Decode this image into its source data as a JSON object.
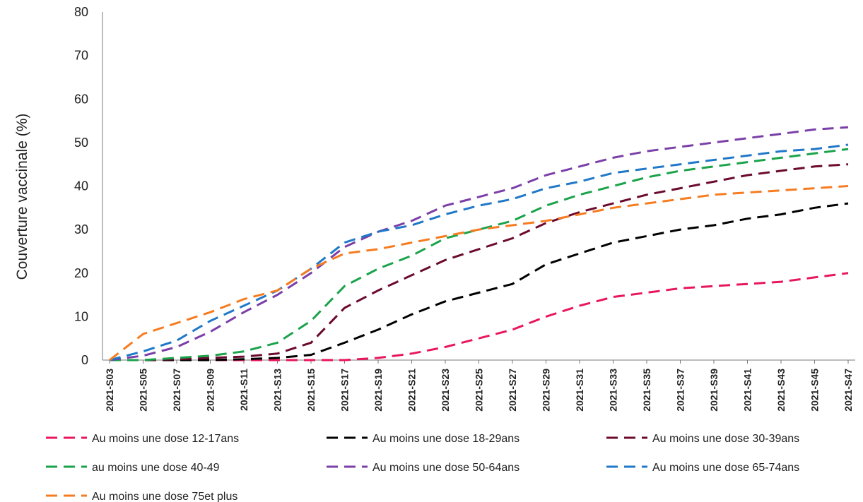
{
  "chart_data": {
    "type": "line",
    "ylabel": "Couverture vaccinale (%)",
    "xlabel": "",
    "ylim": [
      0,
      80
    ],
    "yticks": [
      "0",
      "10",
      "20",
      "30",
      "40",
      "50",
      "60",
      "70",
      "80"
    ],
    "x": [
      "2021-S03",
      "2021-S05",
      "2021-S07",
      "2021-S09",
      "2021-S11",
      "2021-S13",
      "2021-S15",
      "2021-S17",
      "2021-S19",
      "2021-S21",
      "2021-S23",
      "2021-S25",
      "2021-S27",
      "2021-S29",
      "2021-S31",
      "2021-S33",
      "2021-S35",
      "2021-S37",
      "2021-S39",
      "2021-S41",
      "2021-S43",
      "2021-S45",
      "2021-S47"
    ],
    "grid": false,
    "legend_position": "bottom",
    "series": [
      {
        "name": "Au moins une dose 12-17ans",
        "color": "#e8175d",
        "values": [
          0,
          0,
          0,
          0,
          0,
          0,
          0,
          0,
          0.5,
          1.5,
          3,
          5,
          7,
          10,
          12.5,
          14.5,
          15.5,
          16.5,
          17,
          17.5,
          18,
          19,
          20
        ]
      },
      {
        "name": "Au moins une dose 18-29ans",
        "color": "#000000",
        "values": [
          0,
          0,
          0,
          0,
          0.2,
          0.5,
          1.2,
          4,
          7,
          10.5,
          13.5,
          15.5,
          17.5,
          22,
          24.5,
          27,
          28.5,
          30,
          31,
          32.5,
          33.5,
          35,
          36
        ]
      },
      {
        "name": "Au moins une dose 30-39ans",
        "color": "#6b0a2e",
        "values": [
          0,
          0,
          0.2,
          0.5,
          0.8,
          1.5,
          4,
          12,
          16,
          19.5,
          23,
          25.5,
          28,
          31.5,
          34,
          36,
          38,
          39.5,
          41,
          42.5,
          43.5,
          44.5,
          45
        ]
      },
      {
        "name": "au moins une dose 40-49",
        "color": "#1aa34a",
        "values": [
          0,
          0,
          0.5,
          1,
          2,
          4,
          9,
          17,
          21,
          24,
          28,
          30,
          32,
          35.5,
          38,
          40,
          42,
          43.5,
          44.5,
          45.5,
          46.5,
          47.5,
          48.5
        ]
      },
      {
        "name": "Au moins une dose 50-64ans",
        "color": "#7b3fa8",
        "values": [
          0,
          1,
          3,
          6.5,
          11,
          15,
          20,
          26,
          29.5,
          32,
          35.5,
          37.5,
          39.5,
          42.5,
          44.5,
          46.5,
          48,
          49,
          50,
          51,
          52,
          53,
          53.5
        ]
      },
      {
        "name": "Au moins une dose 65-74ans",
        "color": "#1f78c8",
        "values": [
          0,
          2,
          4.5,
          9,
          12.5,
          16,
          21,
          27,
          29.5,
          31,
          33.5,
          35.5,
          37,
          39.5,
          41,
          43,
          44,
          45,
          46,
          47,
          48,
          48.5,
          49.5
        ]
      },
      {
        "name": "Au moins une dose 75et plus",
        "color": "#f57c20",
        "values": [
          0,
          6,
          8.5,
          11,
          14,
          16,
          21,
          24.5,
          25.5,
          27,
          28.5,
          30,
          31,
          32,
          33.5,
          35,
          36,
          37,
          38,
          38.5,
          39,
          39.5,
          40
        ]
      }
    ]
  }
}
